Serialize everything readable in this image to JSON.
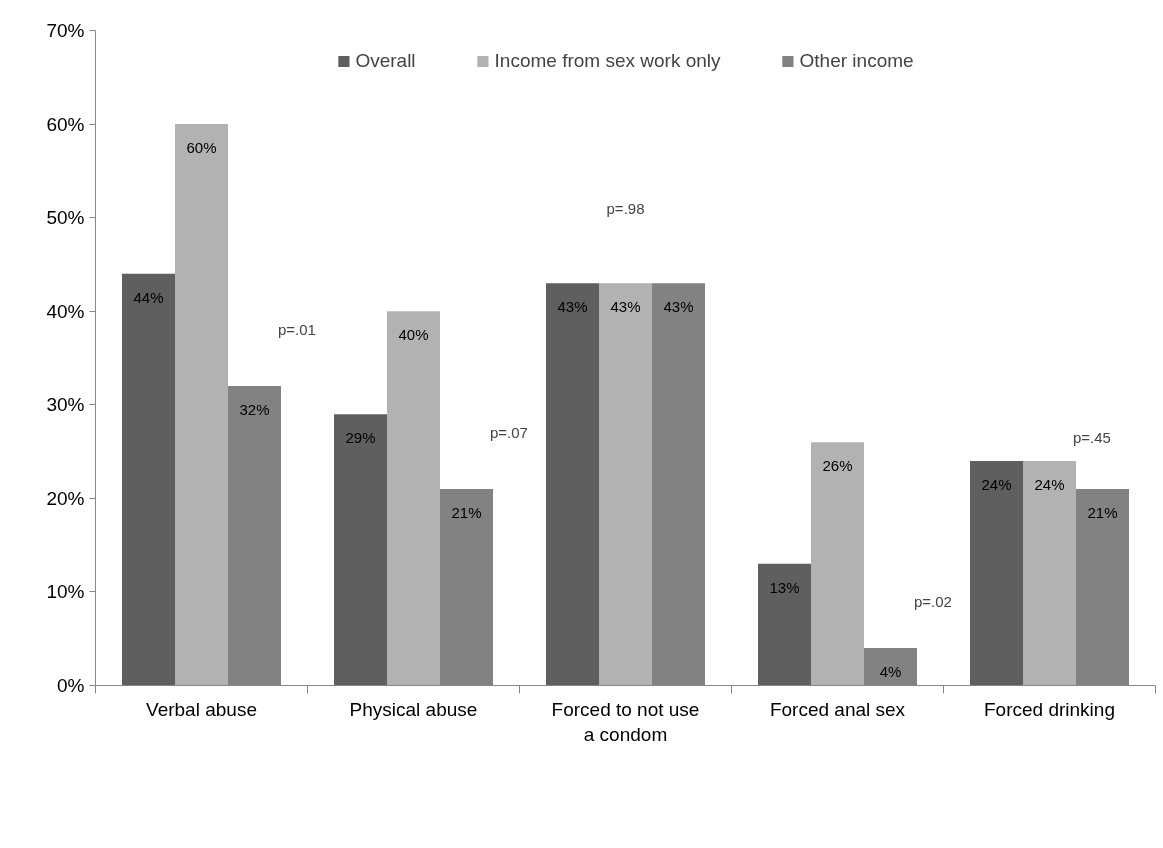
{
  "chart_data": {
    "type": "bar",
    "categories": [
      "Verbal abuse",
      "Physical abuse",
      "Forced to not use a condom",
      "Forced anal sex",
      "Forced drinking"
    ],
    "series": [
      {
        "name": "Overall",
        "color": "#5f5f5f",
        "values": [
          44,
          29,
          43,
          13,
          24
        ],
        "value_labels": [
          "44%",
          "29%",
          "43%",
          "13%",
          "24%"
        ]
      },
      {
        "name": "Income from sex work only",
        "color": "#b2b2b2",
        "values": [
          60,
          40,
          43,
          26,
          24
        ],
        "value_labels": [
          "60%",
          "40%",
          "43%",
          "26%",
          "24%"
        ]
      },
      {
        "name": "Other income",
        "color": "#828282",
        "values": [
          32,
          21,
          43,
          4,
          21
        ],
        "value_labels": [
          "32%",
          "21%",
          "43%",
          "4%",
          "21%"
        ]
      }
    ],
    "ylim": [
      0,
      70
    ],
    "yticks": [
      {
        "value": 0,
        "label": "0%"
      },
      {
        "value": 10,
        "label": "10%"
      },
      {
        "value": 20,
        "label": "20%"
      },
      {
        "value": 30,
        "label": "30%"
      },
      {
        "value": 40,
        "label": "40%"
      },
      {
        "value": 50,
        "label": "50%"
      },
      {
        "value": 60,
        "label": "60%"
      },
      {
        "value": 70,
        "label": "70%"
      }
    ],
    "annotations": [
      "p=.01",
      "p=.07",
      "p=.98",
      "p=.02",
      "p=.45"
    ],
    "grid": false,
    "legend": "top"
  }
}
